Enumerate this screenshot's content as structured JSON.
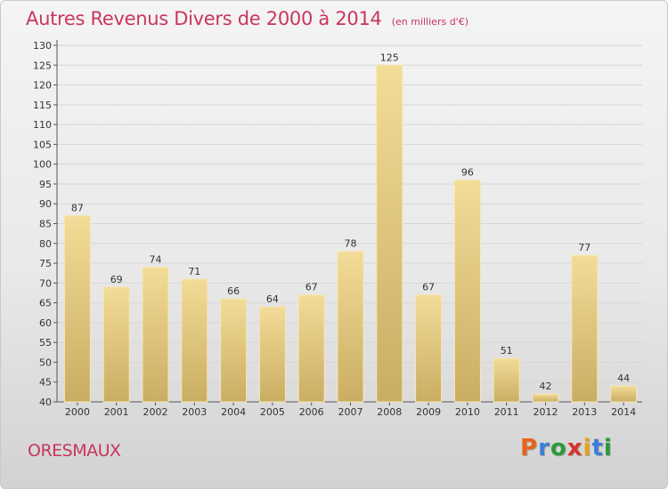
{
  "chart_data": {
    "type": "bar",
    "title": "Autres Revenus Divers de 2000 à 2014",
    "subtitle": "(en milliers d'€)",
    "categories": [
      "2000",
      "2001",
      "2002",
      "2003",
      "2004",
      "2005",
      "2006",
      "2007",
      "2008",
      "2009",
      "2010",
      "2011",
      "2012",
      "2013",
      "2014"
    ],
    "values": [
      87,
      69,
      74,
      71,
      66,
      64,
      67,
      78,
      125,
      67,
      96,
      51,
      42,
      77,
      44
    ],
    "ylim": [
      40,
      130
    ],
    "yticks": [
      40,
      45,
      50,
      55,
      60,
      65,
      70,
      75,
      80,
      85,
      90,
      95,
      100,
      105,
      110,
      115,
      120,
      125,
      130
    ],
    "grid": true,
    "bar_color": "#e8cf84"
  },
  "footer": {
    "place": "ORESMAUX",
    "logo_letters": [
      "P",
      "r",
      "o",
      "x",
      "i",
      "t",
      "i"
    ],
    "logo_colors": [
      "#e8641b",
      "#3a7fd8",
      "#2a9a3a",
      "#d8322a",
      "#e8a21b",
      "#3a7fd8",
      "#2a9a3a"
    ]
  }
}
